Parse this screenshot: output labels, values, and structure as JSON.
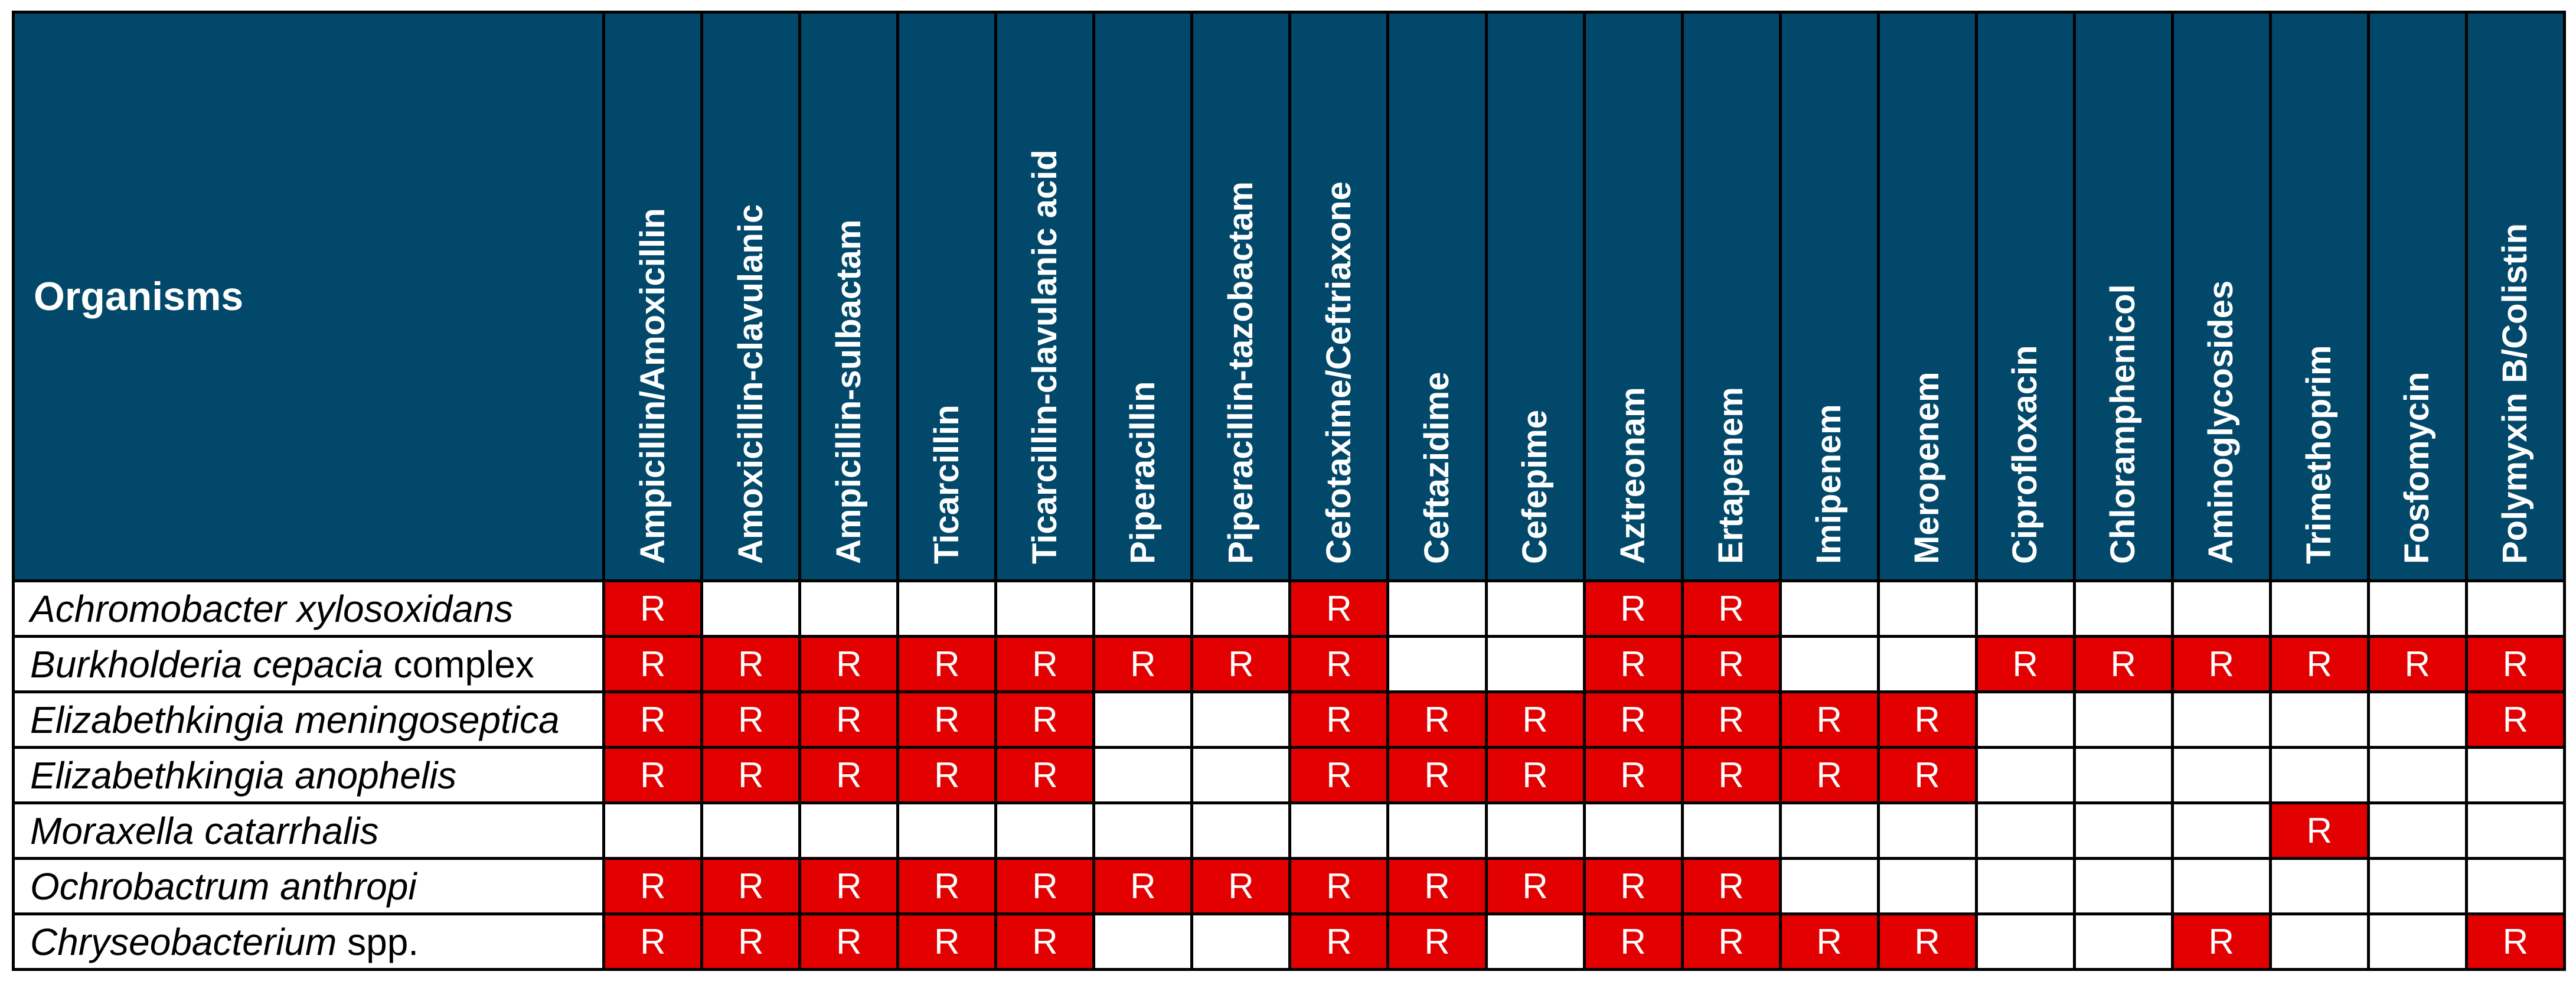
{
  "table": {
    "organisms_header": "Organisms",
    "antibiotics": [
      "Ampicillin/Amoxicillin",
      "Amoxicillin-clavulanic",
      "Ampicillin-sulbactam",
      "Ticarcillin",
      "Ticarcillin-clavulanic acid",
      "Piperacillin",
      "Piperacillin-tazobactam",
      "Cefotaxime/Ceftriaxone",
      "Ceftazidime",
      "Cefepime",
      "Aztreonam",
      "Ertapenem",
      "Imipenem",
      "Meropenem",
      "Ciprofloxacin",
      "Chloramphenicol",
      "Aminoglycosides",
      "Trimethoprim",
      "Fosfomycin",
      "Polymyxin B/Colistin"
    ],
    "rows": [
      {
        "organism": [
          {
            "text": "Achromobacter xylosoxidans",
            "italic": true
          }
        ],
        "cells": [
          "R",
          "",
          "",
          "",
          "",
          "",
          "",
          "R",
          "",
          "",
          "R",
          "R",
          "",
          "",
          "",
          "",
          "",
          "",
          "",
          ""
        ]
      },
      {
        "organism": [
          {
            "text": "Burkholderia cepacia",
            "italic": true
          },
          {
            "text": " complex",
            "italic": false
          }
        ],
        "cells": [
          "R",
          "R",
          "R",
          "R",
          "R",
          "R",
          "R",
          "R",
          "",
          "",
          "R",
          "R",
          "",
          "",
          "R",
          "R",
          "R",
          "R",
          "R",
          "R"
        ]
      },
      {
        "organism": [
          {
            "text": "Elizabethkingia meningoseptica",
            "italic": true
          }
        ],
        "cells": [
          "R",
          "R",
          "R",
          "R",
          "R",
          "",
          "",
          "R",
          "R",
          "R",
          "R",
          "R",
          "R",
          "R",
          "",
          "",
          "",
          "",
          "",
          "R"
        ]
      },
      {
        "organism": [
          {
            "text": "Elizabethkingia anophelis",
            "italic": true
          }
        ],
        "cells": [
          "R",
          "R",
          "R",
          "R",
          "R",
          "",
          "",
          "R",
          "R",
          "R",
          "R",
          "R",
          "R",
          "R",
          "",
          "",
          "",
          "",
          "",
          ""
        ]
      },
      {
        "organism": [
          {
            "text": "Moraxella catarrhalis",
            "italic": true
          }
        ],
        "cells": [
          "",
          "",
          "",
          "",
          "",
          "",
          "",
          "",
          "",
          "",
          "",
          "",
          "",
          "",
          "",
          "",
          "",
          "R",
          "",
          ""
        ]
      },
      {
        "organism": [
          {
            "text": "Ochrobactrum anthropi",
            "italic": true
          }
        ],
        "cells": [
          "R",
          "R",
          "R",
          "R",
          "R",
          "R",
          "R",
          "R",
          "R",
          "R",
          "R",
          "R",
          "",
          "",
          "",
          "",
          "",
          "",
          "",
          ""
        ]
      },
      {
        "organism": [
          {
            "text": "Chryseobacterium",
            "italic": true
          },
          {
            "text": " spp.",
            "italic": false
          }
        ],
        "cells": [
          "R",
          "R",
          "R",
          "R",
          "R",
          "",
          "",
          "R",
          "R",
          "",
          "R",
          "R",
          "R",
          "R",
          "",
          "",
          "R",
          "",
          "",
          "R"
        ]
      }
    ]
  },
  "colors": {
    "header_bg": "#01486a",
    "resistant_bg": "#e30000",
    "border": "#000000"
  }
}
